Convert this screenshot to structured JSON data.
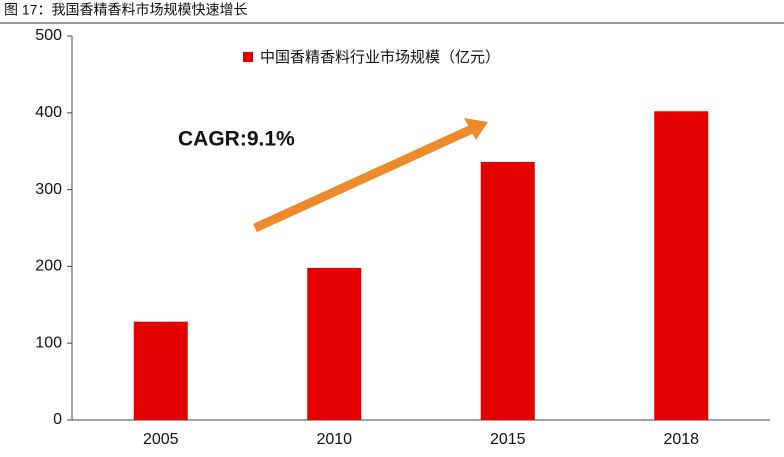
{
  "chart_data": {
    "type": "bar",
    "title": "图 17：我国香精香料市场规模快速增长",
    "legend_label": "中国香精香料行业市场规模（亿元）",
    "annotation": "CAGR:9.1%",
    "categories": [
      "2005",
      "2010",
      "2015",
      "2018"
    ],
    "values": [
      128,
      198,
      336,
      402
    ],
    "color": "#e50000",
    "ylim": [
      0,
      500
    ],
    "yticks": [
      0,
      100,
      200,
      300,
      400,
      500
    ],
    "grid": false
  }
}
